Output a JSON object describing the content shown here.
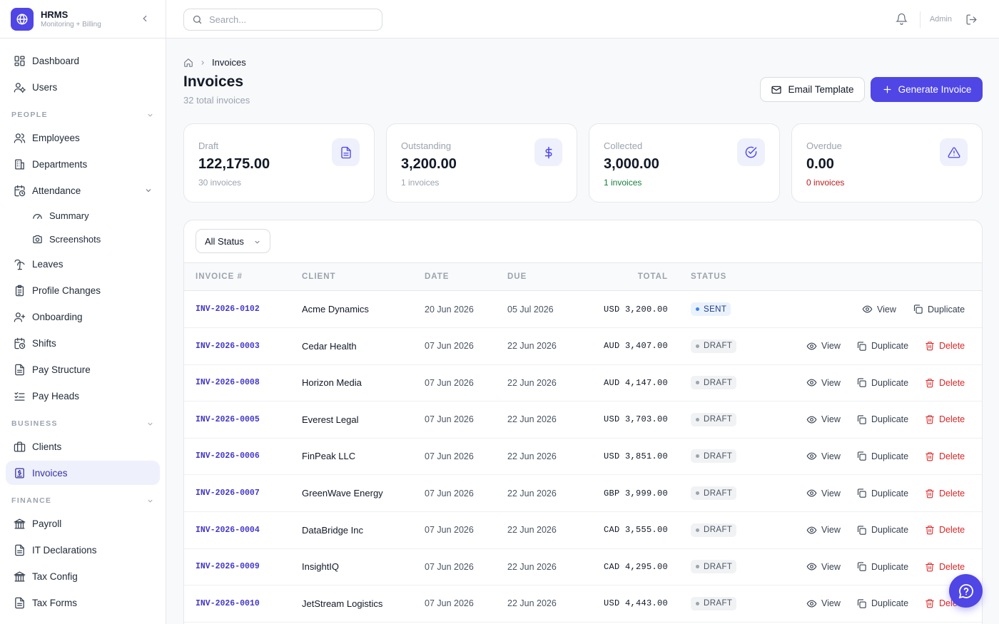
{
  "brand": {
    "title": "HRMS",
    "subtitle": "Monitoring + Billing"
  },
  "sidebar": {
    "top_items": [
      {
        "label": "Dashboard",
        "icon": "dashboard-icon"
      },
      {
        "label": "Users",
        "icon": "users-icon"
      }
    ],
    "sections": {
      "people": "PEOPLE",
      "business": "BUSINESS",
      "finance": "FINANCE"
    },
    "people_items": [
      {
        "label": "Employees",
        "icon": "employees-icon"
      },
      {
        "label": "Departments",
        "icon": "building-icon"
      },
      {
        "label": "Attendance",
        "icon": "calendar-clock-icon"
      },
      {
        "label": "Summary",
        "icon": "gauge-icon"
      },
      {
        "label": "Screenshots",
        "icon": "camera-icon"
      },
      {
        "label": "Leaves",
        "icon": "palm-tree-icon"
      },
      {
        "label": "Profile Changes",
        "icon": "clipboard-icon"
      },
      {
        "label": "Onboarding",
        "icon": "user-plus-icon"
      },
      {
        "label": "Shifts",
        "icon": "calendar-clock-icon"
      },
      {
        "label": "Pay Structure",
        "icon": "file-text-icon"
      },
      {
        "label": "Pay Heads",
        "icon": "list-checks-icon"
      }
    ],
    "business_items": [
      {
        "label": "Clients",
        "icon": "briefcase-icon"
      },
      {
        "label": "Invoices",
        "icon": "receipt-icon"
      }
    ],
    "finance_items": [
      {
        "label": "Payroll",
        "icon": "landmark-icon"
      },
      {
        "label": "IT Declarations",
        "icon": "file-text-icon"
      },
      {
        "label": "Tax Config",
        "icon": "landmark-icon"
      },
      {
        "label": "Tax Forms",
        "icon": "file-text-icon"
      }
    ]
  },
  "topbar": {
    "search_placeholder": "Search...",
    "user_label": "Admin"
  },
  "breadcrumb": {
    "current": "Invoices"
  },
  "page": {
    "title": "Invoices",
    "subtitle": "32 total invoices"
  },
  "actions": {
    "email_template": "Email Template",
    "generate_invoice": "Generate Invoice"
  },
  "stats": [
    {
      "label": "Draft",
      "value": "122,175.00",
      "foot": "30 invoices",
      "icon": "file-icon"
    },
    {
      "label": "Outstanding",
      "value": "3,200.00",
      "foot": "1 invoices",
      "icon": "dollar-icon"
    },
    {
      "label": "Collected",
      "value": "3,000.00",
      "foot": "1 invoices",
      "icon": "check-circle-icon"
    },
    {
      "label": "Overdue",
      "value": "0.00",
      "foot": "0 invoices",
      "icon": "alert-triangle-icon"
    }
  ],
  "filter": {
    "selected": "All Status"
  },
  "table": {
    "headers": {
      "invoice": "INVOICE #",
      "client": "CLIENT",
      "date": "DATE",
      "due": "DUE",
      "total": "TOTAL",
      "status": "STATUS"
    },
    "action_labels": {
      "view": "View",
      "duplicate": "Duplicate",
      "delete": "Delete"
    },
    "rows": [
      {
        "invoice": "INV-2026-0102",
        "client": "Acme Dynamics",
        "date": "20 Jun 2026",
        "due": "05 Jul 2026",
        "total": "USD 3,200.00",
        "status": "SENT",
        "can_delete": false
      },
      {
        "invoice": "INV-2026-0003",
        "client": "Cedar Health",
        "date": "07 Jun 2026",
        "due": "22 Jun 2026",
        "total": "AUD 3,407.00",
        "status": "DRAFT",
        "can_delete": true
      },
      {
        "invoice": "INV-2026-0008",
        "client": "Horizon Media",
        "date": "07 Jun 2026",
        "due": "22 Jun 2026",
        "total": "AUD 4,147.00",
        "status": "DRAFT",
        "can_delete": true
      },
      {
        "invoice": "INV-2026-0005",
        "client": "Everest Legal",
        "date": "07 Jun 2026",
        "due": "22 Jun 2026",
        "total": "USD 3,703.00",
        "status": "DRAFT",
        "can_delete": true
      },
      {
        "invoice": "INV-2026-0006",
        "client": "FinPeak LLC",
        "date": "07 Jun 2026",
        "due": "22 Jun 2026",
        "total": "USD 3,851.00",
        "status": "DRAFT",
        "can_delete": true
      },
      {
        "invoice": "INV-2026-0007",
        "client": "GreenWave Energy",
        "date": "07 Jun 2026",
        "due": "22 Jun 2026",
        "total": "GBP 3,999.00",
        "status": "DRAFT",
        "can_delete": true
      },
      {
        "invoice": "INV-2026-0004",
        "client": "DataBridge Inc",
        "date": "07 Jun 2026",
        "due": "22 Jun 2026",
        "total": "CAD 3,555.00",
        "status": "DRAFT",
        "can_delete": true
      },
      {
        "invoice": "INV-2026-0009",
        "client": "InsightIQ",
        "date": "07 Jun 2026",
        "due": "22 Jun 2026",
        "total": "CAD 4,295.00",
        "status": "DRAFT",
        "can_delete": true
      },
      {
        "invoice": "INV-2026-0010",
        "client": "JetStream Logistics",
        "date": "07 Jun 2026",
        "due": "22 Jun 2026",
        "total": "USD 4,443.00",
        "status": "DRAFT",
        "can_delete": true
      }
    ]
  },
  "colors": {
    "accent": "#4f46e5",
    "invoice_link": "#4338ca",
    "sent": "#3b82f6",
    "danger": "#dc2626",
    "success": "#15803d"
  }
}
